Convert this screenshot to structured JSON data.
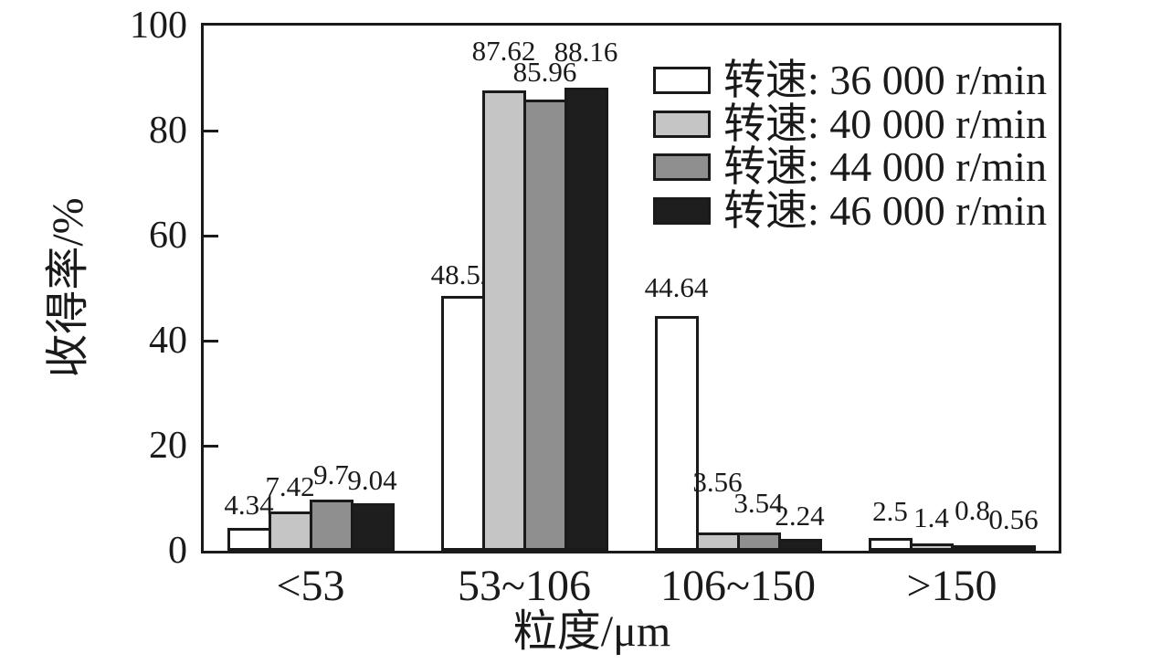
{
  "chart_data": {
    "type": "bar",
    "title": "",
    "xlabel": "粒度/μm",
    "ylabel": "收得率/%",
    "ylim": [
      0,
      100
    ],
    "yticks": [
      0,
      20,
      40,
      60,
      80,
      100
    ],
    "grid": false,
    "legend_position": "top-right-inside",
    "axis_color": "#1a1a1a",
    "background_color": "#ffffff",
    "bar_border_color": "#1a1a1a",
    "categories": [
      "<53",
      "53~106",
      "106~150",
      ">150"
    ],
    "series": [
      {
        "name": "转速: 36 000 r/min",
        "color": "#ffffff",
        "values": [
          4.34,
          48.52,
          44.64,
          2.5
        ],
        "label_dy": [
          10,
          8,
          16,
          14
        ]
      },
      {
        "name": "转速: 40 000 r/min",
        "color": "#c5c5c5",
        "values": [
          7.42,
          87.62,
          3.56,
          1.4
        ],
        "label_dy": [
          12,
          28,
          40,
          13
        ]
      },
      {
        "name": "转速: 44 000 r/min",
        "color": "#8f8f8f",
        "values": [
          9.7,
          85.96,
          3.54,
          0.8
        ],
        "label_dy": [
          12,
          15,
          17,
          24
        ]
      },
      {
        "name": "转速: 46 000 r/min",
        "color": "#1e1e1e",
        "values": [
          9.04,
          88.16,
          2.24,
          0.56
        ],
        "label_dy": [
          10,
          24,
          10,
          16
        ]
      }
    ]
  }
}
